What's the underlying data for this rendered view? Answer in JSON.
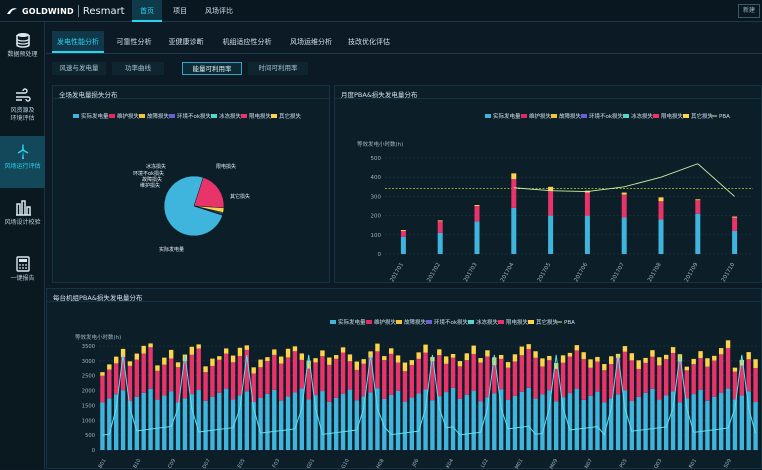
{
  "app": {
    "brand": "GOLDWIND",
    "product": "Resmart"
  },
  "topnav": [
    {
      "label": "首页",
      "active": true
    },
    {
      "label": "项目",
      "active": false
    },
    {
      "label": "风场评比",
      "active": false
    }
  ],
  "topright": "新建",
  "sidebar": [
    {
      "label": "数据预处理",
      "icon": "database-icon"
    },
    {
      "label": "风资源及 环境评估",
      "icon": "wind-icon"
    },
    {
      "label": "风场运行评估",
      "icon": "wind-turbine-icon",
      "active": true
    },
    {
      "label": "风场设计校验",
      "icon": "factory-icon"
    },
    {
      "label": "一键报告",
      "icon": "calculator-icon"
    }
  ],
  "tabs1": [
    "发电性能分析",
    "可靠性分析",
    "亚健康诊断",
    "机组适应性分析",
    "风场运维分析",
    "技改优化评估"
  ],
  "tabs2": [
    "风速与发电量",
    "功率曲线",
    "能量可利用率",
    "时间可利用率"
  ],
  "panels": {
    "pie": {
      "title": "全场发电量损失分布"
    },
    "monthly": {
      "title": "月度PBA&损失发电量分布"
    },
    "turbine": {
      "title": "每台机组PBA&损失发电量分布"
    }
  },
  "legend": {
    "actual": "实际发电量",
    "maint": "维护损失",
    "fault": "故障损失",
    "env": "环境不ok损失",
    "ice": "冰冻损失",
    "limit": "限电损失",
    "other": "其它损失",
    "pba": "PBA"
  },
  "colors": {
    "actual": "#3fb4dc",
    "maint": "#e02a60",
    "fault": "#f2c239",
    "env": "#6a5fd1",
    "ice": "#55d6c8",
    "limit": "#e8336b",
    "other": "#ffd34a",
    "pba": "#c8f0a8",
    "accent": "#29d4ef"
  },
  "chart_data": [
    {
      "type": "pie",
      "slices": [
        {
          "name": "实际发电量",
          "value": 75
        },
        {
          "name": "限电损失",
          "value": 21
        },
        {
          "name": "其它损失",
          "value": 2.5
        },
        {
          "name": "冰冻损失",
          "value": 0.5
        },
        {
          "name": "环境不ok损失",
          "value": 0.5
        },
        {
          "name": "故障损失",
          "value": 0.3
        },
        {
          "name": "维护损失",
          "value": 0.2
        }
      ]
    },
    {
      "type": "bar",
      "ylabel": "等效发电小时数(h)",
      "ylim": [
        0,
        500
      ],
      "yticks": [
        0,
        100,
        200,
        300,
        400,
        500
      ],
      "categories": [
        "201701",
        "201702",
        "201703",
        "201704",
        "201705",
        "201706",
        "201707",
        "201708",
        "201709",
        "201710"
      ],
      "series": [
        {
          "name": "实际发电量",
          "values": [
            90,
            110,
            170,
            240,
            200,
            200,
            190,
            180,
            210,
            120
          ]
        },
        {
          "name": "限电损失",
          "values": [
            30,
            60,
            80,
            150,
            130,
            120,
            120,
            95,
            70,
            70
          ]
        },
        {
          "name": "其它损失",
          "values": [
            5,
            5,
            5,
            30,
            20,
            10,
            10,
            20,
            5,
            5
          ]
        }
      ],
      "pba_line": [
        null,
        null,
        null,
        345,
        330,
        325,
        350,
        400,
        470,
        300
      ],
      "reference": 340
    },
    {
      "type": "bar",
      "ylabel": "等效发电小时数(h)",
      "ylim": [
        0,
        3500
      ],
      "yticks": [
        0,
        500,
        1000,
        1500,
        2000,
        2500,
        3000,
        3500
      ],
      "categories": [
        "B01",
        "B10",
        "C09",
        "D07",
        "E05",
        "F03",
        "G01",
        "G10",
        "H08",
        "J06",
        "K04",
        "L02",
        "M01",
        "M09",
        "N07",
        "P05",
        "Q03",
        "R01",
        "S09"
      ],
      "series_names": [
        "实际发电量",
        "限电损失",
        "其它损失"
      ],
      "bar_count": 96
    }
  ]
}
